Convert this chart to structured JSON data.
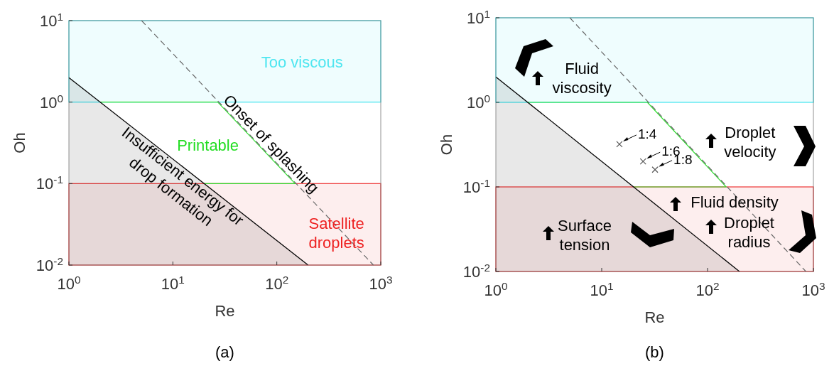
{
  "chart_data": [
    {
      "type": "line",
      "title": "(a)",
      "xlabel": "Re",
      "ylabel": "Oh",
      "log": "xy",
      "xlim": [
        1,
        1000
      ],
      "ylim": [
        0.01,
        10
      ],
      "xticks": [
        {
          "value": 1,
          "label": "10$^{0}$"
        },
        {
          "value": 10,
          "label": "10$^{1}$"
        },
        {
          "value": 100,
          "label": "10$^{2}$"
        },
        {
          "value": 1000,
          "label": "10$^{3}$"
        }
      ],
      "yticks": [
        {
          "value": 0.01,
          "label": "10$^{-2}$"
        },
        {
          "value": 0.1,
          "label": "10$^{-1}$"
        },
        {
          "value": 1,
          "label": "10$^{0}$"
        },
        {
          "value": 10,
          "label": "10$^{1}$"
        }
      ],
      "bands": [
        {
          "axis": "y",
          "from": 1,
          "to": 10,
          "color": "#4ee6f0"
        },
        {
          "axis": "y",
          "from": 0.01,
          "to": 0.1,
          "color": "#ee4444"
        }
      ],
      "series": [
        {
          "color": "#33dd33",
          "x": [
            2,
            27,
            150,
            20
          ],
          "values": [
            1,
            1,
            0.1,
            0.1
          ]
        },
        {
          "type": "area",
          "color": "#000000",
          "x": [
            1,
            200
          ],
          "values": [
            2,
            0.01
          ]
        },
        {
          "color": "#666666",
          "line_style": "dashed",
          "x": [
            5,
            850
          ],
          "values": [
            10,
            0.01
          ]
        }
      ],
      "annotations": [
        "Too viscous",
        "Onset of splashing",
        "Printable",
        "Insufficient energy for\ndrop formation",
        "Satellite\ndroplets"
      ]
    },
    {
      "type": "line",
      "title": "(b)",
      "xlabel": "Re",
      "ylabel": "Oh",
      "log": "xy",
      "xlim": [
        1,
        1000
      ],
      "ylim": [
        0.01,
        10
      ],
      "xticks": [
        {
          "value": 1,
          "label": "10$^{0}$"
        },
        {
          "value": 10,
          "label": "10$^{1}$"
        },
        {
          "value": 100,
          "label": "10$^{2}$"
        },
        {
          "value": 1000,
          "label": "10$^{3}$"
        }
      ],
      "yticks": [
        {
          "value": 0.01,
          "label": "10$^{-2}$"
        },
        {
          "value": 0.1,
          "label": "10$^{-1}$"
        },
        {
          "value": 1,
          "label": "10$^{0}$"
        },
        {
          "value": 10,
          "label": "10$^{1}$"
        }
      ],
      "bands": [
        {
          "axis": "y",
          "from": 1,
          "to": 10,
          "color": "#4ee6f0"
        },
        {
          "axis": "y",
          "from": 0.01,
          "to": 0.1,
          "color": "#ee4444"
        }
      ],
      "series": [
        {
          "color": "#33dd33",
          "x": [
            2,
            27,
            150,
            20
          ],
          "values": [
            1,
            1,
            0.1,
            0.1
          ]
        },
        {
          "type": "area",
          "color": "#000000",
          "x": [
            1,
            200
          ],
          "values": [
            2,
            0.01
          ]
        },
        {
          "color": "#666666",
          "line_style": "dashed",
          "x": [
            5,
            850
          ],
          "values": [
            10,
            0.01
          ]
        },
        {
          "type": "scatter",
          "color": "#555555",
          "marker": "cross",
          "x": [
            14.7,
            24.6,
            31.9
          ],
          "values": [
            0.32,
            0.2,
            0.16
          ],
          "value_labels": [
            "1:4",
            "1:6",
            "1:8"
          ]
        }
      ],
      "annotations": [
        "Fluid\nviscosity",
        "Droplet\nvelocity",
        "Fluid density",
        "Droplet\nradius",
        "Surface\ntension"
      ]
    }
  ]
}
